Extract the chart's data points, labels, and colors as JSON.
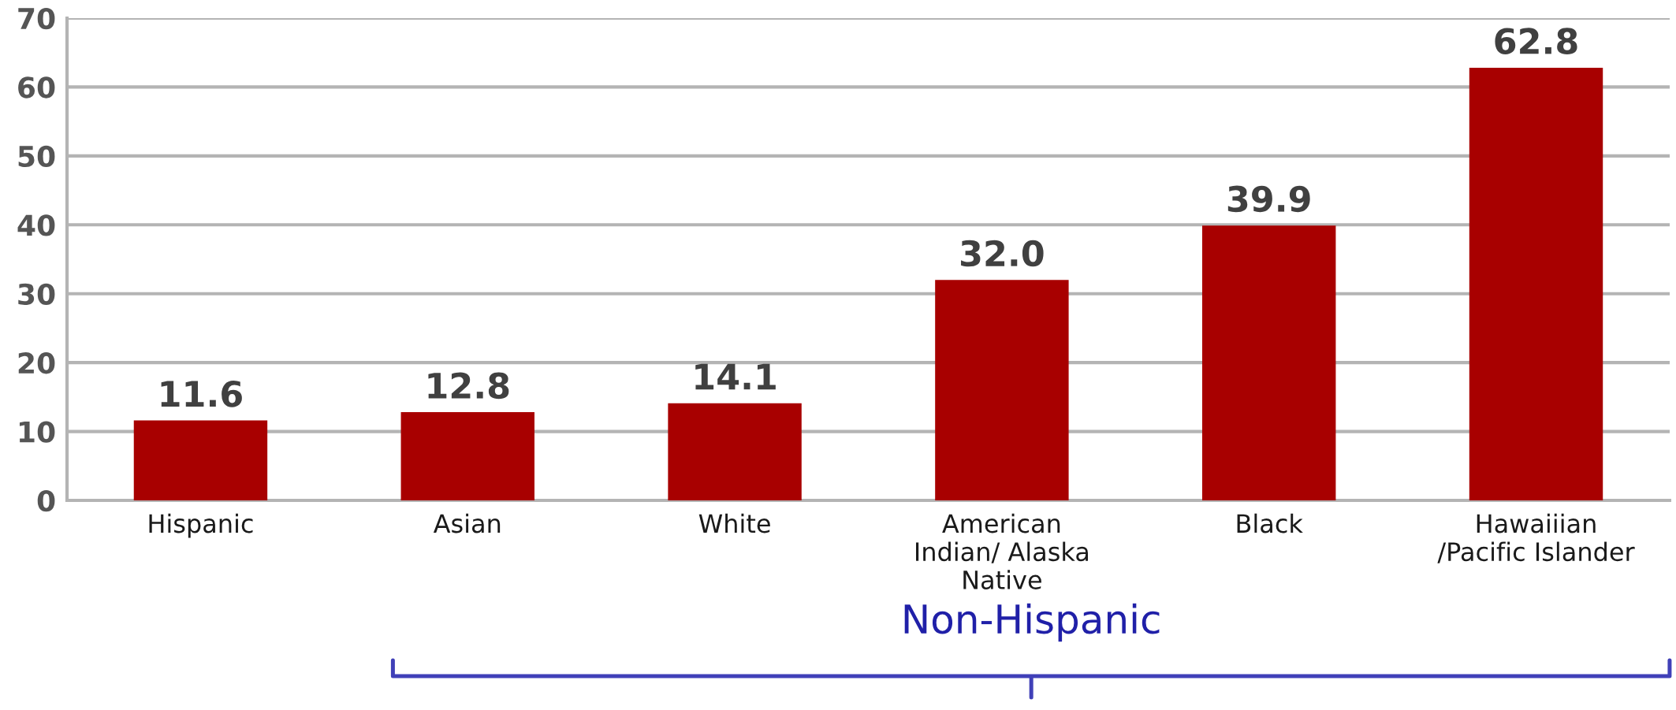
{
  "chart_data": {
    "type": "bar",
    "categories": [
      "Hispanic",
      "Asian",
      "White",
      "American\nIndian/ Alaska\nNative",
      "Black",
      "Hawaiiian\n/Pacific Islander"
    ],
    "values": [
      11.6,
      12.8,
      14.1,
      32.0,
      39.9,
      62.8
    ],
    "value_labels": [
      "11.6",
      "12.8",
      "14.1",
      "32.0",
      "39.9",
      "62.8"
    ],
    "color": "#a80000",
    "ylim": [
      0,
      70
    ],
    "yticks": [
      0,
      10,
      20,
      30,
      40,
      50,
      60,
      70
    ],
    "grid": "y",
    "annotations": [
      "Non-Hispanic"
    ]
  }
}
